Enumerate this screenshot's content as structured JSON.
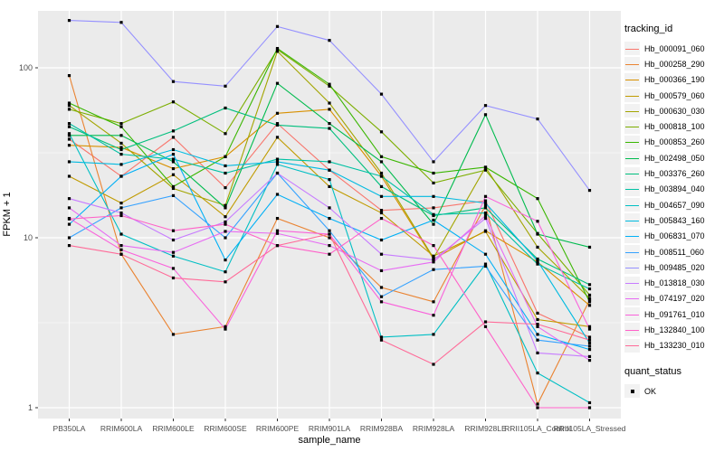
{
  "chart_data": {
    "type": "line",
    "title": "",
    "xlabel": "sample_name",
    "ylabel": "FPKM + 1",
    "y_scale": "log10",
    "y_ticks": [
      1,
      10,
      100
    ],
    "ylim": [
      1,
      200
    ],
    "grid": "white major and minor gridlines on gray panel",
    "legend_position": "right",
    "legend_title": "tracking_id",
    "point_marker": "black-square",
    "categories": [
      "PB350LA",
      "RRIM600LA",
      "RRIM600LE",
      "RRIM600SE",
      "RRIM600PE",
      "RRIM901LA",
      "RRIM928BA",
      "RRIM928LA",
      "RRIM928LE",
      "RRII105LA_Control",
      "RRII105LA_Stressed"
    ],
    "series": [
      {
        "name": "Hb_000091_060",
        "color": "#F8766D",
        "values": [
          38,
          23,
          39,
          19.7,
          47,
          25,
          14.5,
          15,
          16.5,
          3.6,
          2.6
        ]
      },
      {
        "name": "Hb_000258_290",
        "color": "#EA8331",
        "values": [
          90,
          8,
          2.7,
          3.0,
          13,
          10,
          5.1,
          4.2,
          15.5,
          1.05,
          4.3
        ]
      },
      {
        "name": "Hb_000366_190",
        "color": "#D89000",
        "values": [
          35,
          34,
          25.5,
          30,
          54,
          57,
          23,
          7.5,
          11,
          7.2,
          4.0
        ]
      },
      {
        "name": "Hb_000579_060",
        "color": "#C09B00",
        "values": [
          23,
          16,
          23.5,
          13.3,
          39,
          20,
          14,
          7.8,
          10.9,
          3.3,
          3.0
        ]
      },
      {
        "name": "Hb_000630_030",
        "color": "#A3A500",
        "values": [
          60,
          36,
          19.5,
          15.5,
          125,
          62,
          24,
          7.6,
          26,
          8.8,
          4.4
        ]
      },
      {
        "name": "Hb_000818_100",
        "color": "#7CAE00",
        "values": [
          57,
          47,
          63,
          41,
          128,
          78,
          42,
          21,
          25,
          10.6,
          4.6
        ]
      },
      {
        "name": "Hb_000853_260",
        "color": "#39B600",
        "values": [
          62,
          45,
          20,
          30,
          130,
          80,
          30,
          24,
          26,
          17,
          4.2
        ]
      },
      {
        "name": "Hb_002498_050",
        "color": "#00BB4E",
        "values": [
          40,
          40,
          28,
          15,
          81,
          47,
          28,
          12,
          53,
          10.5,
          8.8
        ]
      },
      {
        "name": "Hb_003376_260",
        "color": "#00BF7D",
        "values": [
          45,
          33,
          42.5,
          58,
          46,
          44,
          20,
          13.5,
          15,
          7.5,
          5.3
        ]
      },
      {
        "name": "Hb_003894_040",
        "color": "#00C1A3",
        "values": [
          47,
          31,
          29,
          24,
          29,
          28,
          23,
          13.7,
          14,
          7.0,
          5.0
        ]
      },
      {
        "name": "Hb_004657_090",
        "color": "#00BFC4",
        "values": [
          41,
          10.5,
          7.8,
          6.3,
          27,
          22,
          2.6,
          2.7,
          7,
          1.6,
          1.07
        ]
      },
      {
        "name": "Hb_005843_160",
        "color": "#00BAE0",
        "values": [
          28,
          27,
          33,
          26.5,
          28,
          25,
          17.5,
          17.5,
          16,
          7.3,
          2.4
        ]
      },
      {
        "name": "Hb_006831_070",
        "color": "#00B0F6",
        "values": [
          12,
          23,
          31,
          7.4,
          18,
          13,
          9.7,
          12.7,
          8,
          2.7,
          2.2
        ]
      },
      {
        "name": "Hb_008511_060",
        "color": "#35A2FF",
        "values": [
          10,
          15,
          17.7,
          10,
          24,
          11,
          4.5,
          6.5,
          6.8,
          2.5,
          2.3
        ]
      },
      {
        "name": "Hb_009485_020",
        "color": "#9590FF",
        "values": [
          190,
          185,
          83,
          78,
          175,
          145,
          70,
          28,
          60,
          50,
          19
        ]
      },
      {
        "name": "Hb_013818_030",
        "color": "#C77CFF",
        "values": [
          17,
          14,
          9.7,
          12.4,
          24,
          15,
          8,
          7.4,
          13,
          2.1,
          2.0
        ]
      },
      {
        "name": "Hb_074197_020",
        "color": "#E76BF3",
        "values": [
          15,
          9,
          8.2,
          10.9,
          10.6,
          9,
          6.4,
          7.2,
          13.5,
          3.0,
          1.9
        ]
      },
      {
        "name": "Hb_091761_010",
        "color": "#FA62DB",
        "values": [
          13,
          8.5,
          6.6,
          2.9,
          11,
          10.5,
          4.2,
          3.5,
          17.5,
          12.5,
          2.9
        ]
      },
      {
        "name": "Hb_132840_100",
        "color": "#FF61C9",
        "values": [
          12.9,
          13.5,
          11,
          12,
          9,
          8,
          13,
          9,
          3,
          1.0,
          1.0
        ]
      },
      {
        "name": "Hb_133230_010",
        "color": "#FF6A98",
        "values": [
          9,
          8,
          5.8,
          5.5,
          9,
          10.5,
          2.5,
          1.8,
          3.2,
          3.1,
          2.5
        ]
      }
    ],
    "quant_legend": {
      "title": "quant_status",
      "items": [
        {
          "label": "OK",
          "marker": "black-square"
        }
      ]
    }
  },
  "colors": {
    "panel_bg": "#EBEBEB",
    "grid": "#FFFFFF",
    "axis_text": "#4D4D4D",
    "tick": "#333333",
    "point": "#000000",
    "legend_key_bg": "#F2F2F2"
  }
}
